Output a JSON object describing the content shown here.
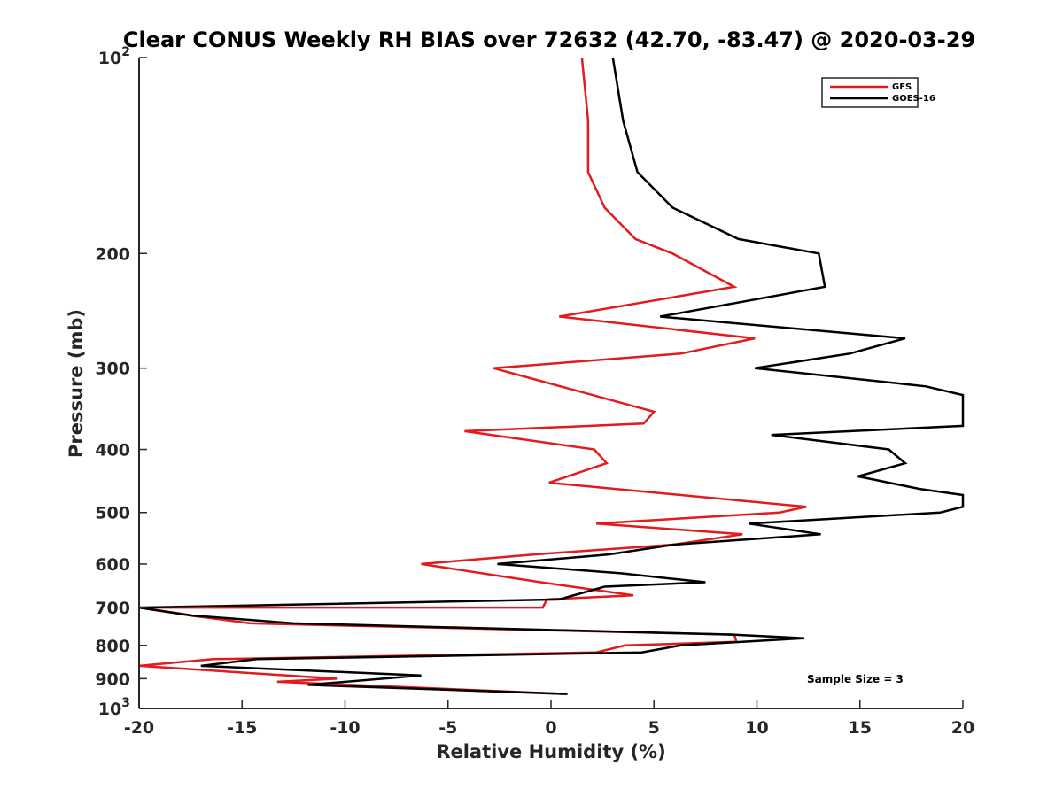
{
  "chart_data": {
    "type": "line",
    "title": "Clear CONUS Weekly RH BIAS over 72632 (42.70, -83.47) @ 2020-03-29",
    "xlabel": "Relative Humidity (%)",
    "ylabel": "Pressure (mb)",
    "xlim": [
      -20,
      20
    ],
    "ylim": [
      100,
      1000
    ],
    "y_scale": "log",
    "y_reversed": true,
    "grid": false,
    "legend_position": "top-right",
    "x_ticks": [
      -20,
      -15,
      -10,
      -5,
      0,
      5,
      10,
      15,
      20
    ],
    "y_ticks": [
      {
        "value": 100,
        "base": "10",
        "exp": "2"
      },
      {
        "value": 200,
        "label": "200"
      },
      {
        "value": 300,
        "label": "300"
      },
      {
        "value": 400,
        "label": "400"
      },
      {
        "value": 500,
        "label": "500"
      },
      {
        "value": 600,
        "label": "600"
      },
      {
        "value": 700,
        "label": "700"
      },
      {
        "value": 800,
        "label": "800"
      },
      {
        "value": 900,
        "label": "900"
      },
      {
        "value": 1000,
        "base": "10",
        "exp": "3"
      }
    ],
    "series": [
      {
        "name": "GFS",
        "color": "#e41a1c",
        "points": [
          [
            1.5,
            100
          ],
          [
            1.8,
            125
          ],
          [
            1.8,
            150
          ],
          [
            2.6,
            170
          ],
          [
            4.1,
            190
          ],
          [
            5.9,
            200
          ],
          [
            8.9,
            225
          ],
          [
            0.4,
            250
          ],
          [
            9.9,
            270
          ],
          [
            6.3,
            285
          ],
          [
            -2.8,
            300
          ],
          [
            5.0,
            350
          ],
          [
            4.5,
            365
          ],
          [
            -4.2,
            375
          ],
          [
            2.1,
            400
          ],
          [
            2.7,
            420
          ],
          [
            -0.1,
            450
          ],
          [
            12.4,
            490
          ],
          [
            11.1,
            500
          ],
          [
            2.2,
            520
          ],
          [
            9.3,
            540
          ],
          [
            6.0,
            560
          ],
          [
            -0.8,
            580
          ],
          [
            -6.3,
            600
          ],
          [
            -0.5,
            640
          ],
          [
            4.0,
            670
          ],
          [
            -0.2,
            680
          ],
          [
            -0.4,
            700
          ],
          [
            -20,
            700
          ],
          [
            -17.5,
            720
          ],
          [
            -14.6,
            740
          ],
          [
            8.9,
            770
          ],
          [
            9.0,
            790
          ],
          [
            3.6,
            800
          ],
          [
            2.2,
            820
          ],
          [
            -16.4,
            840
          ],
          [
            -20,
            860
          ],
          [
            -10.4,
            900
          ],
          [
            -13.3,
            910
          ],
          [
            0.7,
            950
          ]
        ]
      },
      {
        "name": "GOES-16",
        "color": "#000000",
        "points": [
          [
            3.0,
            100
          ],
          [
            3.5,
            125
          ],
          [
            4.2,
            150
          ],
          [
            5.9,
            170
          ],
          [
            9.1,
            190
          ],
          [
            13.0,
            200
          ],
          [
            13.3,
            225
          ],
          [
            5.3,
            250
          ],
          [
            17.2,
            270
          ],
          [
            14.5,
            285
          ],
          [
            9.9,
            300
          ],
          [
            18.2,
            320
          ],
          [
            20,
            330
          ],
          [
            20,
            368
          ],
          [
            10.7,
            380
          ],
          [
            16.4,
            400
          ],
          [
            17.2,
            420
          ],
          [
            14.9,
            440
          ],
          [
            17.9,
            460
          ],
          [
            20,
            470
          ],
          [
            20,
            490
          ],
          [
            18.9,
            500
          ],
          [
            9.6,
            520
          ],
          [
            13.1,
            540
          ],
          [
            6.0,
            560
          ],
          [
            2.8,
            580
          ],
          [
            -2.6,
            600
          ],
          [
            3.4,
            620
          ],
          [
            7.5,
            640
          ],
          [
            2.6,
            650
          ],
          [
            0.4,
            680
          ],
          [
            -20,
            700
          ],
          [
            -17.4,
            720
          ],
          [
            -12.5,
            740
          ],
          [
            8.8,
            770
          ],
          [
            12.3,
            780
          ],
          [
            6.3,
            800
          ],
          [
            4.4,
            820
          ],
          [
            -14.3,
            840
          ],
          [
            -17.0,
            860
          ],
          [
            -6.3,
            890
          ],
          [
            -11.8,
            920
          ],
          [
            0.8,
            950
          ]
        ]
      }
    ],
    "annotation": "Sample Size = 3"
  }
}
